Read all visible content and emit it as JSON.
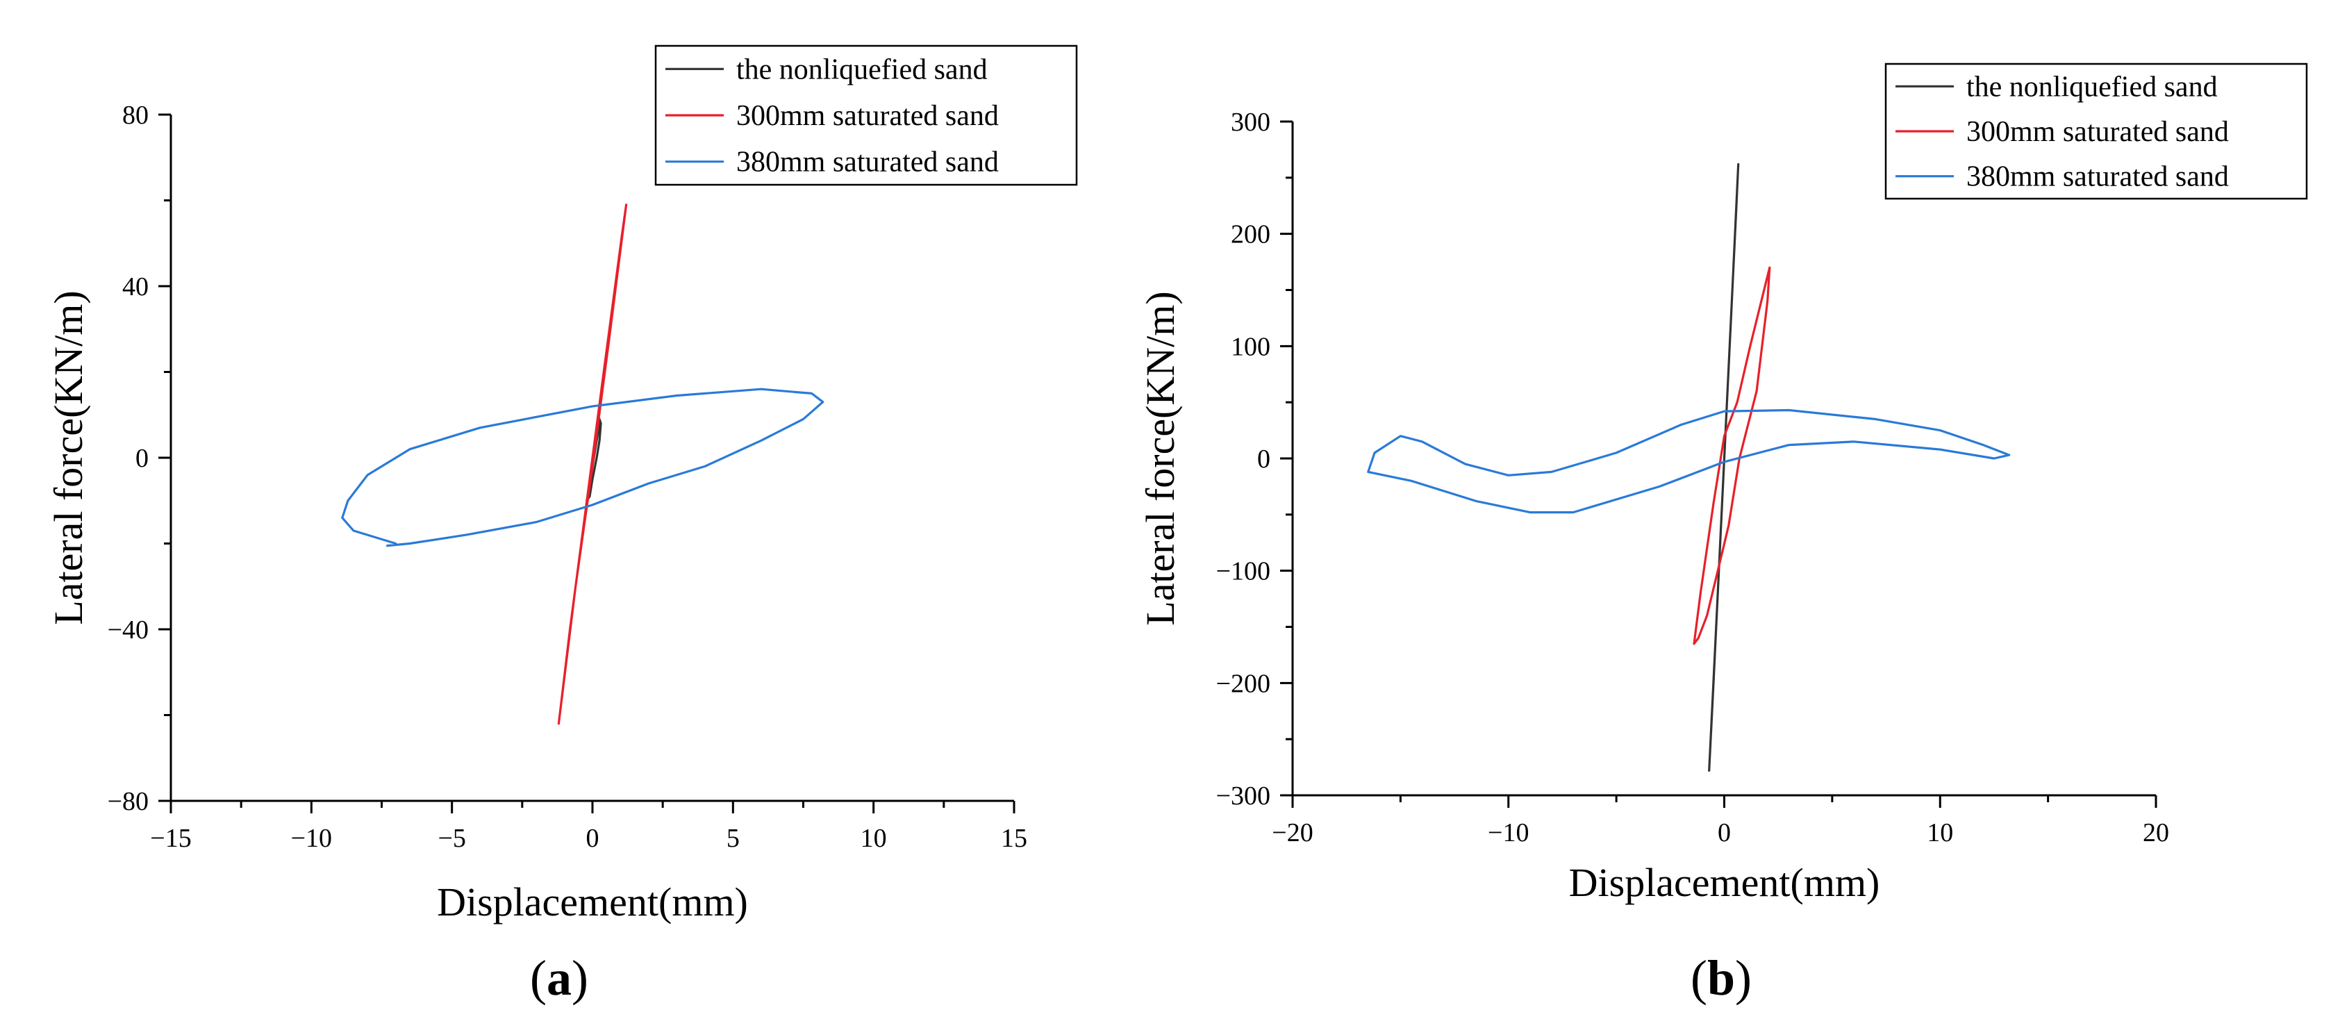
{
  "chart_data": [
    {
      "type": "line",
      "panel_label": "a",
      "xlabel": "Displacement(mm)",
      "ylabel": "Lateral force(KN/m)",
      "xlim": [
        -15,
        15
      ],
      "ylim": [
        -80,
        80
      ],
      "xticks": [
        -15,
        -10,
        -5,
        0,
        5,
        10,
        15
      ],
      "yticks": [
        -80,
        -40,
        0,
        40,
        80
      ],
      "legend_position": "top-right",
      "series": [
        {
          "name": "the  nonliquefied sand",
          "color": "#333333",
          "points": [
            [
              -0.2,
              -10
            ],
            [
              -0.1,
              -6
            ],
            [
              0,
              -2
            ],
            [
              0.1,
              2
            ],
            [
              0.2,
              6
            ],
            [
              0.25,
              9
            ],
            [
              0.3,
              8
            ],
            [
              0.25,
              4
            ],
            [
              0.15,
              0
            ],
            [
              0,
              -5
            ],
            [
              -0.1,
              -9
            ],
            [
              -0.2,
              -10
            ]
          ]
        },
        {
          "name": "300mm saturated sand",
          "color": "#e8202a",
          "points": [
            [
              -1.2,
              -62
            ],
            [
              -0.6,
              -30
            ],
            [
              0,
              -2
            ],
            [
              0.6,
              28
            ],
            [
              1.2,
              59
            ],
            [
              1.05,
              52
            ],
            [
              0.4,
              20
            ],
            [
              -0.2,
              -10
            ],
            [
              -0.8,
              -40
            ],
            [
              -1.2,
              -62
            ]
          ]
        },
        {
          "name": "380mm saturated sand",
          "color": "#2a7ad8",
          "points": [
            [
              -7,
              -20
            ],
            [
              -8.5,
              -17
            ],
            [
              -8.9,
              -14
            ],
            [
              -8.7,
              -10
            ],
            [
              -8,
              -4
            ],
            [
              -6.5,
              2
            ],
            [
              -4,
              7
            ],
            [
              0,
              12
            ],
            [
              3,
              14.5
            ],
            [
              6,
              16
            ],
            [
              7.8,
              15
            ],
            [
              8.2,
              13
            ],
            [
              7.5,
              9
            ],
            [
              6,
              4
            ],
            [
              4,
              -2
            ],
            [
              2,
              -6
            ],
            [
              0,
              -11
            ],
            [
              -2,
              -15
            ],
            [
              -4.5,
              -18
            ],
            [
              -6.5,
              -20
            ],
            [
              -7.3,
              -20.5
            ]
          ]
        }
      ]
    },
    {
      "type": "line",
      "panel_label": "b",
      "xlabel": "Displacement(mm)",
      "ylabel": "Lateral force(KN/m)",
      "xlim": [
        -20,
        20
      ],
      "ylim": [
        -300,
        300
      ],
      "xticks": [
        -20,
        -10,
        0,
        10,
        20
      ],
      "yticks": [
        -300,
        -200,
        -100,
        0,
        100,
        200,
        300
      ],
      "legend_position": "top-right",
      "series": [
        {
          "name": "the  nonliquefied sand",
          "color": "#333333",
          "points": [
            [
              -0.7,
              -278
            ],
            [
              -0.35,
              -140
            ],
            [
              0,
              0
            ],
            [
              0.35,
              140
            ],
            [
              0.65,
              262
            ],
            [
              0.55,
              220
            ],
            [
              0.2,
              80
            ],
            [
              -0.15,
              -60
            ],
            [
              -0.5,
              -200
            ],
            [
              -0.7,
              -278
            ]
          ]
        },
        {
          "name": "300mm saturated sand",
          "color": "#e8202a",
          "points": [
            [
              -1.4,
              -165
            ],
            [
              -1.1,
              -120
            ],
            [
              -0.5,
              -40
            ],
            [
              0,
              20
            ],
            [
              0.6,
              50
            ],
            [
              1.2,
              100
            ],
            [
              2.1,
              170
            ],
            [
              2,
              140
            ],
            [
              1.5,
              60
            ],
            [
              0.7,
              0
            ],
            [
              0.2,
              -60
            ],
            [
              -0.3,
              -100
            ],
            [
              -0.8,
              -140
            ],
            [
              -1.2,
              -160
            ],
            [
              -1.4,
              -165
            ]
          ]
        },
        {
          "name": "380mm saturated sand",
          "color": "#2a7ad8",
          "points": [
            [
              -16.5,
              -12
            ],
            [
              -16.2,
              5
            ],
            [
              -15,
              20
            ],
            [
              -14,
              15
            ],
            [
              -12,
              -5
            ],
            [
              -10,
              -15
            ],
            [
              -8,
              -12
            ],
            [
              -5,
              5
            ],
            [
              -2,
              30
            ],
            [
              0,
              42
            ],
            [
              3,
              43
            ],
            [
              7,
              35
            ],
            [
              10,
              25
            ],
            [
              12,
              12
            ],
            [
              13.2,
              3
            ],
            [
              12.5,
              0
            ],
            [
              10,
              8
            ],
            [
              6,
              15
            ],
            [
              3,
              12
            ],
            [
              0,
              -3
            ],
            [
              -3,
              -25
            ],
            [
              -7,
              -48
            ],
            [
              -9,
              -48
            ],
            [
              -11.5,
              -38
            ],
            [
              -14.5,
              -20
            ],
            [
              -16.5,
              -12
            ]
          ]
        }
      ]
    }
  ]
}
